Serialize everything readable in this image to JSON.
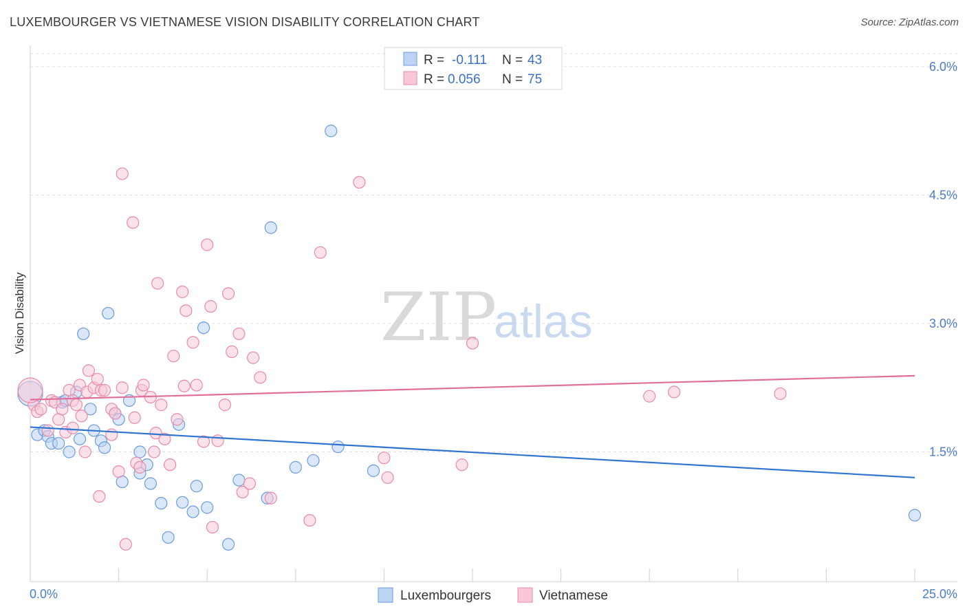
{
  "title": "LUXEMBOURGER VS VIETNAMESE VISION DISABILITY CORRELATION CHART",
  "source": "Source: ZipAtlas.com",
  "watermark": {
    "zip": "ZIP",
    "atlas": "atlas"
  },
  "legend": {
    "r_label": "R =",
    "n_label": "N =",
    "items": [
      {
        "r": "-0.111",
        "n": "43"
      },
      {
        "r": "0.056",
        "n": "75"
      }
    ]
  },
  "bottom_legend": [
    "Luxembourgers",
    "Vietnamese"
  ],
  "colors": {
    "blue_fill": "#bcd3f2",
    "blue_stroke": "#6a9be0",
    "blue_line": "#2f74d0",
    "pink_fill": "#f8c8d8",
    "pink_stroke": "#e88aa8",
    "pink_line": "#e0709a",
    "grid": "#dddddd",
    "tick": "#4a7cc9"
  },
  "chart_data": {
    "type": "scatter",
    "title": "LUXEMBOURGER VS VIETNAMESE VISION DISABILITY CORRELATION CHART",
    "xlabel": "",
    "ylabel": "Vision Disability",
    "xlim": [
      0,
      25
    ],
    "ylim": [
      0,
      6.2
    ],
    "x_tick_labels": [
      "0.0%",
      "25.0%"
    ],
    "y_ticks": [
      1.5,
      3.0,
      4.5,
      6.0
    ],
    "y_tick_labels": [
      "1.5%",
      "3.0%",
      "4.5%",
      "6.0%"
    ],
    "grid": true,
    "legend_position": "top-center",
    "series": [
      {
        "name": "Luxembourgers",
        "r": -0.111,
        "n": 43,
        "trend": {
          "x": [
            0,
            25
          ],
          "y": [
            1.79,
            1.2
          ]
        },
        "points": [
          [
            0.2,
            1.7
          ],
          [
            0.4,
            1.75
          ],
          [
            0.5,
            1.68
          ],
          [
            0.6,
            1.6
          ],
          [
            0.8,
            1.6
          ],
          [
            0.9,
            2.08
          ],
          [
            1.0,
            2.1
          ],
          [
            1.1,
            1.5
          ],
          [
            1.3,
            2.2
          ],
          [
            1.4,
            1.65
          ],
          [
            1.5,
            2.88
          ],
          [
            1.7,
            2.0
          ],
          [
            1.8,
            1.75
          ],
          [
            2.0,
            1.63
          ],
          [
            2.1,
            1.55
          ],
          [
            2.2,
            3.12
          ],
          [
            2.4,
            1.95
          ],
          [
            2.5,
            1.88
          ],
          [
            2.6,
            1.15
          ],
          [
            2.8,
            2.1
          ],
          [
            3.1,
            1.5
          ],
          [
            3.1,
            1.25
          ],
          [
            3.3,
            1.35
          ],
          [
            3.4,
            1.13
          ],
          [
            3.7,
            0.9
          ],
          [
            3.9,
            0.5
          ],
          [
            4.2,
            1.82
          ],
          [
            4.3,
            0.91
          ],
          [
            4.6,
            0.8
          ],
          [
            4.7,
            1.1
          ],
          [
            4.9,
            2.95
          ],
          [
            5.0,
            0.85
          ],
          [
            5.6,
            0.42
          ],
          [
            5.9,
            1.17
          ],
          [
            6.7,
            0.96
          ],
          [
            6.8,
            4.12
          ],
          [
            7.5,
            1.32
          ],
          [
            8.0,
            1.4
          ],
          [
            8.5,
            5.25
          ],
          [
            8.7,
            1.56
          ],
          [
            9.7,
            1.28
          ],
          [
            25.0,
            0.76
          ],
          [
            0.0,
            2.18
          ]
        ]
      },
      {
        "name": "Vietnamese",
        "r": 0.056,
        "n": 75,
        "trend": {
          "x": [
            0,
            25
          ],
          "y": [
            2.11,
            2.39
          ]
        },
        "points": [
          [
            0.1,
            2.05
          ],
          [
            0.2,
            1.97
          ],
          [
            0.3,
            2.0
          ],
          [
            0.5,
            1.75
          ],
          [
            0.6,
            2.1
          ],
          [
            0.7,
            2.08
          ],
          [
            0.8,
            1.88
          ],
          [
            0.9,
            2.0
          ],
          [
            1.0,
            1.73
          ],
          [
            1.1,
            2.22
          ],
          [
            1.2,
            2.1
          ],
          [
            1.2,
            1.78
          ],
          [
            1.3,
            2.05
          ],
          [
            1.4,
            2.28
          ],
          [
            1.45,
            1.92
          ],
          [
            1.55,
            1.5
          ],
          [
            1.6,
            2.2
          ],
          [
            1.65,
            2.45
          ],
          [
            1.8,
            2.25
          ],
          [
            1.9,
            2.35
          ],
          [
            1.95,
            0.98
          ],
          [
            2.0,
            2.22
          ],
          [
            2.1,
            2.22
          ],
          [
            2.3,
            1.7
          ],
          [
            2.3,
            2.0
          ],
          [
            2.4,
            1.95
          ],
          [
            2.5,
            1.27
          ],
          [
            2.6,
            2.25
          ],
          [
            2.6,
            4.75
          ],
          [
            2.7,
            0.42
          ],
          [
            2.9,
            4.18
          ],
          [
            2.95,
            1.9
          ],
          [
            3.0,
            1.37
          ],
          [
            3.1,
            1.32
          ],
          [
            3.15,
            2.22
          ],
          [
            3.2,
            2.28
          ],
          [
            3.4,
            2.14
          ],
          [
            3.5,
            1.5
          ],
          [
            3.55,
            1.72
          ],
          [
            3.6,
            3.47
          ],
          [
            3.7,
            2.05
          ],
          [
            3.8,
            1.65
          ],
          [
            3.95,
            1.35
          ],
          [
            4.05,
            2.62
          ],
          [
            4.15,
            1.88
          ],
          [
            4.3,
            3.37
          ],
          [
            4.35,
            2.27
          ],
          [
            4.4,
            3.15
          ],
          [
            4.6,
            2.78
          ],
          [
            4.7,
            2.28
          ],
          [
            4.9,
            1.62
          ],
          [
            5.0,
            3.92
          ],
          [
            5.1,
            3.2
          ],
          [
            5.15,
            0.62
          ],
          [
            5.3,
            1.63
          ],
          [
            5.5,
            2.05
          ],
          [
            5.6,
            3.35
          ],
          [
            5.7,
            2.67
          ],
          [
            5.9,
            2.88
          ],
          [
            6.0,
            1.03
          ],
          [
            6.2,
            1.13
          ],
          [
            6.3,
            2.6
          ],
          [
            6.5,
            2.37
          ],
          [
            6.8,
            0.96
          ],
          [
            7.9,
            0.7
          ],
          [
            8.2,
            3.83
          ],
          [
            9.3,
            4.65
          ],
          [
            10.0,
            1.43
          ],
          [
            10.1,
            1.2
          ],
          [
            12.2,
            1.35
          ],
          [
            12.5,
            2.77
          ],
          [
            17.5,
            2.15
          ],
          [
            18.2,
            2.2
          ],
          [
            21.2,
            2.18
          ],
          [
            0.0,
            2.22
          ]
        ]
      }
    ]
  }
}
